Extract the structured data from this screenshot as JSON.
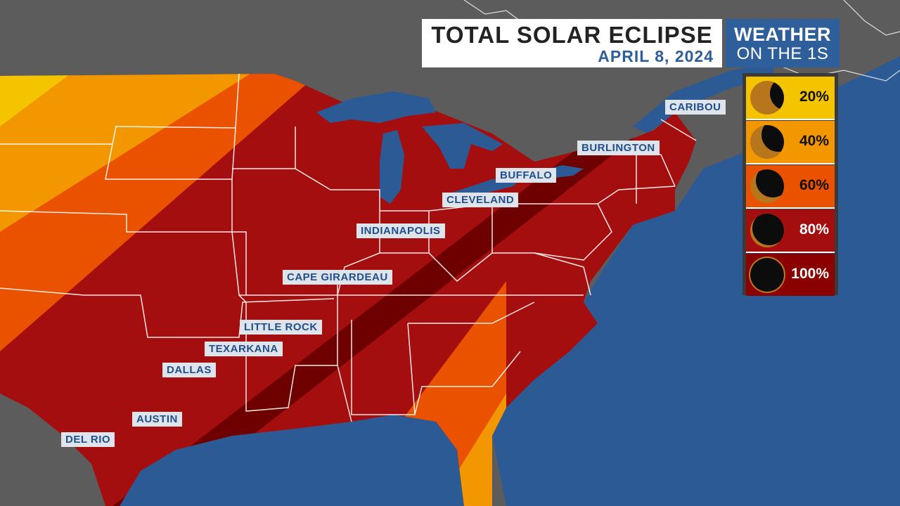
{
  "title": {
    "main": "TOTAL SOLAR ECLIPSE",
    "date": "APRIL 8, 2024"
  },
  "brand": {
    "line1": "WEATHER",
    "line2": "ON THE 1S"
  },
  "legend": [
    {
      "label": "20%",
      "obscuration": 0.2,
      "color": "#f5c400"
    },
    {
      "label": "40%",
      "obscuration": 0.4,
      "color": "#f29700"
    },
    {
      "label": "60%",
      "obscuration": 0.6,
      "color": "#ea5200"
    },
    {
      "label": "80%",
      "obscuration": 0.8,
      "color": "#a50e0e"
    },
    {
      "label": "100%",
      "obscuration": 1.0,
      "color": "#8b0000"
    }
  ],
  "cities": {
    "caribou": "CARIBOU",
    "burlington": "BURLINGTON",
    "buffalo": "BUFFALO",
    "cleveland": "CLEVELAND",
    "indianapolis": "INDIANAPOLIS",
    "cape_girardeau": "CAPE GIRARDEAU",
    "little_rock": "LITTLE ROCK",
    "texarkana": "TEXARKANA",
    "dallas": "DALLAS",
    "austin": "AUSTIN",
    "del_rio": "DEL RIO"
  },
  "colors": {
    "ocean": "#2c5a94",
    "land_outside": "#5c5c5c",
    "totality_path": "#6e0000"
  }
}
